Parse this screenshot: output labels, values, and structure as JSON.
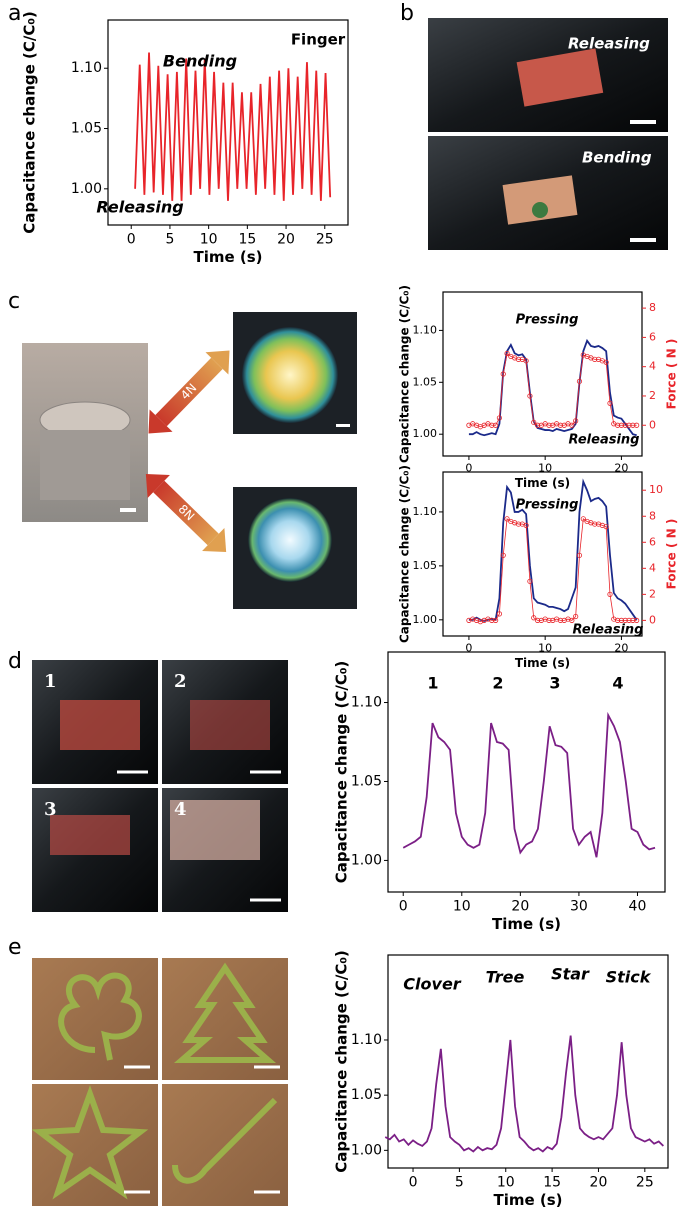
{
  "panel_labels": [
    "a",
    "b",
    "c",
    "d",
    "e"
  ],
  "photo_labels": {
    "b": [
      "Releasing",
      "Bending"
    ],
    "c": [
      "4N",
      "8N"
    ],
    "d": [
      "1",
      "2",
      "3",
      "4"
    ]
  },
  "chart_data": [
    {
      "type": "line",
      "title": "Finger",
      "annotations": [
        "Bending",
        "Releasing"
      ],
      "x_label": "Time (s)",
      "y_label": "Capacitance  change (C/C₀)",
      "x": [
        0.5,
        1.1,
        1.7,
        2.3,
        2.9,
        3.5,
        4.1,
        4.7,
        5.3,
        5.9,
        6.5,
        7.1,
        7.7,
        8.3,
        8.9,
        9.5,
        10.1,
        10.7,
        11.3,
        11.9,
        12.5,
        13.1,
        13.7,
        14.3,
        14.9,
        15.5,
        16.1,
        16.7,
        17.3,
        17.9,
        18.5,
        19.1,
        19.7,
        20.3,
        20.9,
        21.5,
        22.1,
        22.7,
        23.3,
        23.9,
        24.5,
        25.1,
        25.7
      ],
      "series": [
        {
          "color": "#e8242a",
          "values": [
            1.0,
            1.103,
            0.995,
            1.113,
            0.997,
            1.102,
            0.995,
            1.095,
            0.99,
            1.097,
            0.99,
            1.108,
            0.995,
            1.098,
            1.0,
            1.108,
            0.995,
            1.097,
            1.0,
            1.088,
            0.99,
            1.088,
            1.0,
            1.08,
            1.0,
            1.08,
            0.995,
            1.087,
            1.0,
            1.093,
            0.995,
            1.098,
            0.99,
            1.1,
            0.995,
            1.093,
            1.0,
            1.105,
            0.995,
            1.098,
            0.99,
            1.096,
            0.993
          ]
        }
      ],
      "xlim": [
        -3,
        28
      ],
      "ylim": [
        0.97,
        1.14
      ],
      "xticks": [
        0,
        5,
        10,
        15,
        20,
        25
      ],
      "yticks": [
        {
          "value": 1,
          "label": "1.00"
        },
        1.05,
        {
          "value": 1.1,
          "label": "1.10"
        }
      ]
    },
    {
      "type": "line",
      "annotations": [
        "Pressing",
        "Releasing"
      ],
      "x_label": "Time (s)",
      "y_label": "Capacitance  change (C/C₀)",
      "y2_label": "Force ( N )",
      "x": [
        0,
        0.5,
        1,
        1.5,
        2,
        2.5,
        3,
        3.5,
        4,
        4.5,
        5,
        5.5,
        6,
        6.5,
        7,
        7.5,
        8,
        8.5,
        9,
        9.5,
        10,
        10.5,
        11,
        11.5,
        12,
        12.5,
        13,
        13.5,
        14,
        14.5,
        15,
        15.5,
        16,
        16.5,
        17,
        17.5,
        18,
        18.5,
        19,
        19.5,
        20,
        20.5,
        21,
        21.5,
        22
      ],
      "series": [
        {
          "color": "#1b2a8a",
          "values": [
            1.0,
            1.0,
            1.002,
            1.0,
            0.999,
            1.0,
            1.001,
            1.0,
            1.01,
            1.06,
            1.08,
            1.086,
            1.078,
            1.076,
            1.077,
            1.072,
            1.04,
            1.012,
            1.006,
            1.005,
            1.004,
            1.004,
            1.003,
            1.005,
            1.004,
            1.003,
            1.004,
            1.005,
            1.01,
            1.05,
            1.08,
            1.09,
            1.085,
            1.084,
            1.085,
            1.083,
            1.08,
            1.04,
            1.018,
            1.016,
            1.015,
            1.01,
            1.005,
            1.0,
            0.999
          ]
        },
        {
          "color": "#e8242a",
          "axis": "y2",
          "marker": true,
          "values": [
            0,
            0.1,
            0,
            -0.1,
            0,
            0.1,
            0,
            0,
            0.5,
            3.5,
            4.9,
            4.7,
            4.6,
            4.5,
            4.5,
            4.4,
            2,
            0.2,
            0,
            0,
            0.1,
            0,
            0,
            0.1,
            0,
            0,
            0.1,
            0,
            0.3,
            3,
            4.8,
            4.7,
            4.6,
            4.5,
            4.5,
            4.4,
            4.3,
            1.5,
            0.1,
            0,
            0,
            0,
            0,
            0,
            0
          ]
        }
      ],
      "xlim": [
        -3.4,
        22.7
      ],
      "ylim": [
        0.979,
        1.137
      ],
      "y2lim": [
        -2.1,
        9.1
      ],
      "xticks": [
        0,
        10,
        20
      ],
      "yticks": [
        {
          "value": 1,
          "label": "1.00"
        },
        1.05,
        {
          "value": 1.1,
          "label": "1.10"
        }
      ],
      "y2ticks": [
        0,
        2,
        4,
        6,
        8
      ]
    },
    {
      "type": "line",
      "annotations": [
        "Pressing",
        "Releasing"
      ],
      "x_label": "Time (s)",
      "y_label": "Capacitance  change (C/C₀)",
      "y2_label": "Force ( N )",
      "x": [
        0,
        0.5,
        1,
        1.5,
        2,
        2.5,
        3,
        3.5,
        4,
        4.5,
        5,
        5.5,
        6,
        6.5,
        7,
        7.5,
        8,
        8.5,
        9,
        9.5,
        10,
        10.5,
        11,
        11.5,
        12,
        12.5,
        13,
        13.5,
        14,
        14.5,
        15,
        15.5,
        16,
        16.5,
        17,
        17.5,
        18,
        18.5,
        19,
        19.5,
        20,
        20.5,
        21,
        21.5,
        22
      ],
      "series": [
        {
          "color": "#1b2a8a",
          "values": [
            1.0,
            1.0,
            1.002,
            1.0,
            0.999,
            1.0,
            1.001,
            1.0,
            1.02,
            1.09,
            1.123,
            1.118,
            1.1,
            1.1,
            1.102,
            1.098,
            1.05,
            1.02,
            1.016,
            1.015,
            1.014,
            1.012,
            1.012,
            1.011,
            1.01,
            1.008,
            1.01,
            1.02,
            1.03,
            1.1,
            1.128,
            1.12,
            1.11,
            1.112,
            1.113,
            1.11,
            1.105,
            1.06,
            1.025,
            1.02,
            1.018,
            1.015,
            1.01,
            1.005,
            1.0
          ]
        },
        {
          "color": "#e8242a",
          "axis": "y2",
          "marker": true,
          "values": [
            0,
            0.1,
            0,
            -0.1,
            0,
            0.1,
            0,
            0,
            0.5,
            5,
            7.8,
            7.6,
            7.5,
            7.4,
            7.4,
            7.3,
            3,
            0.2,
            0,
            0,
            0.1,
            0,
            0,
            0.1,
            0,
            0,
            0.1,
            0,
            0.3,
            5,
            7.8,
            7.6,
            7.5,
            7.4,
            7.4,
            7.3,
            7.2,
            2,
            0.1,
            0,
            0,
            0,
            0,
            0,
            0
          ]
        }
      ],
      "xlim": [
        -3.4,
        22.7
      ],
      "ylim": [
        0.985,
        1.137
      ],
      "y2lim": [
        -1.2,
        11.4
      ],
      "xticks": [
        0,
        10,
        20
      ],
      "yticks": [
        {
          "value": 1,
          "label": "1.00"
        },
        1.05,
        {
          "value": 1.1,
          "label": "1.10"
        }
      ],
      "y2ticks": [
        0,
        2,
        4,
        6,
        8,
        10
      ]
    },
    {
      "type": "line",
      "annotations": [
        "1",
        "2",
        "3",
        "4"
      ],
      "x_label": "Time (s)",
      "y_label": "Capacitance  change (C/C₀)",
      "x": [
        0,
        1,
        2,
        3,
        4,
        5,
        6,
        7,
        8,
        9,
        10,
        11,
        12,
        13,
        14,
        15,
        16,
        17,
        18,
        19,
        20,
        21,
        22,
        23,
        24,
        25,
        26,
        27,
        28,
        29,
        30,
        31,
        32,
        33,
        34,
        35,
        36,
        37,
        38,
        39,
        40,
        41,
        42,
        43
      ],
      "series": [
        {
          "color": "#7b1f86",
          "values": [
            1.008,
            1.01,
            1.012,
            1.015,
            1.04,
            1.087,
            1.078,
            1.075,
            1.07,
            1.03,
            1.015,
            1.01,
            1.008,
            1.01,
            1.03,
            1.087,
            1.075,
            1.074,
            1.07,
            1.02,
            1.005,
            1.01,
            1.012,
            1.02,
            1.05,
            1.085,
            1.073,
            1.072,
            1.068,
            1.02,
            1.01,
            1.015,
            1.018,
            1.002,
            1.03,
            1.092,
            1.085,
            1.075,
            1.05,
            1.02,
            1.018,
            1.01,
            1.007,
            1.008
          ]
        }
      ],
      "xlim": [
        -2.6,
        44.7
      ],
      "ylim": [
        0.98,
        1.132
      ],
      "xticks": [
        0,
        10,
        20,
        30,
        40
      ],
      "yticks": [
        {
          "value": 1,
          "label": "1.00"
        },
        1.05,
        {
          "value": 1.1,
          "label": "1.10"
        }
      ]
    },
    {
      "type": "line",
      "annotations": [
        "Clover",
        "Tree",
        "Star",
        "Stick"
      ],
      "x_label": "Time (s)",
      "y_label": "Capacitance  change (C/C₀)",
      "x": [
        -3,
        -2.5,
        -2,
        -1.5,
        -1,
        -0.5,
        0,
        0.5,
        1,
        1.5,
        2,
        2.5,
        3,
        3.5,
        4,
        4.5,
        5,
        5.5,
        6,
        6.5,
        7,
        7.5,
        8,
        8.5,
        9,
        9.5,
        10,
        10.5,
        11,
        11.5,
        12,
        12.5,
        13,
        13.5,
        14,
        14.5,
        15,
        15.5,
        16,
        16.5,
        17,
        17.5,
        18,
        18.5,
        19,
        19.5,
        20,
        20.5,
        21,
        21.5,
        22,
        22.5,
        23,
        23.5,
        24,
        24.5,
        25,
        25.5,
        26,
        26.5,
        27
      ],
      "series": [
        {
          "color": "#7b1f86",
          "values": [
            1.012,
            1.01,
            1.014,
            1.008,
            1.01,
            1.005,
            1.009,
            1.006,
            1.004,
            1.008,
            1.02,
            1.06,
            1.092,
            1.04,
            1.012,
            1.008,
            1.005,
            1.0,
            1.002,
            0.999,
            1.003,
            1.0,
            1.002,
            1.001,
            1.005,
            1.02,
            1.06,
            1.1,
            1.04,
            1.012,
            1.008,
            1.003,
            1.0,
            1.002,
            0.999,
            1.003,
            1.001,
            1.006,
            1.03,
            1.07,
            1.104,
            1.05,
            1.02,
            1.015,
            1.012,
            1.01,
            1.012,
            1.01,
            1.015,
            1.02,
            1.05,
            1.098,
            1.05,
            1.02,
            1.012,
            1.01,
            1.008,
            1.01,
            1.006,
            1.008,
            1.004
          ]
        }
      ],
      "xlim": [
        -2.7,
        27.5
      ],
      "ylim": [
        0.984,
        1.177
      ],
      "xticks": [
        0,
        5,
        10,
        15,
        20,
        25
      ],
      "yticks": [
        {
          "value": 1,
          "label": "1.00"
        },
        1.05,
        {
          "value": 1.1,
          "label": "1.10"
        }
      ]
    }
  ]
}
